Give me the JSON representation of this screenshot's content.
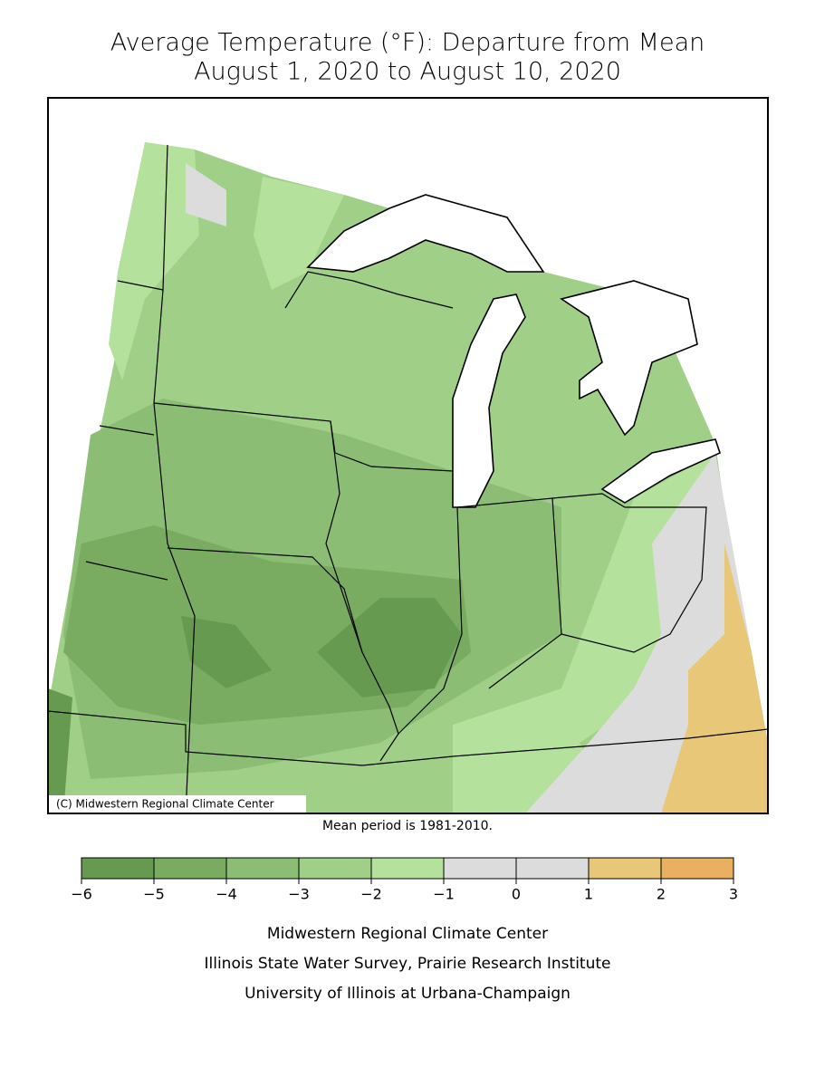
{
  "title": [
    "Average Temperature (°F): Departure from Mean",
    "August 1, 2020 to August 10, 2020"
  ],
  "map": {
    "credit": "(C) Midwestern Regional Climate Center",
    "note": "Mean period is 1981-2010."
  },
  "legend": {
    "bins": [
      {
        "value": -6,
        "label": "−6"
      },
      {
        "value": -5,
        "label": "−5"
      },
      {
        "value": -4,
        "label": "−4"
      },
      {
        "value": -3,
        "label": "−3"
      },
      {
        "value": -2,
        "label": "−2"
      },
      {
        "value": -1,
        "label": "−1"
      },
      0,
      1,
      2,
      3
    ],
    "colors": [
      "#669a50",
      "#79ab61",
      "#8cbd74",
      "#a0cf88",
      "#b4e19c",
      "#dcdcdc",
      "#dcdcdc",
      "#e8c878",
      "#e8b060"
    ]
  },
  "footer": [
    "Midwestern Regional Climate Center",
    "Illinois State Water Survey, Prairie Research Institute",
    "University of Illinois at Urbana-Champaign"
  ]
}
